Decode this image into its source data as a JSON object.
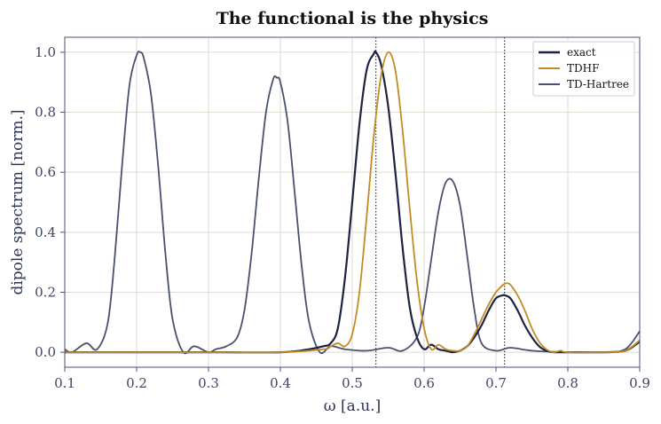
{
  "chart_data": {
    "type": "line",
    "title": "The functional is the physics",
    "xlabel": "ω  [a.u.]",
    "ylabel": "dipole spectrum  [norm.]",
    "xlim": [
      0.1,
      0.9
    ],
    "ylim": [
      -0.05,
      1.05
    ],
    "xticks": [
      0.1,
      0.2,
      0.3,
      0.4,
      0.5,
      0.6,
      0.7,
      0.8,
      0.9
    ],
    "xtick_labels": [
      "0.1",
      "0.2",
      "0.3",
      "0.4",
      "0.5",
      "0.6",
      "0.7",
      "0.8",
      "0.9"
    ],
    "yticks": [
      0.0,
      0.2,
      0.4,
      0.6,
      0.8,
      1.0
    ],
    "ytick_labels": [
      "0.0",
      "0.2",
      "0.4",
      "0.6",
      "0.8",
      "1.0"
    ],
    "grid": true,
    "legend_position": "top-right",
    "vlines": [
      0.533,
      0.712
    ],
    "series": [
      {
        "name": "exact",
        "color": "#1b2340",
        "x": [
          0.1,
          0.2,
          0.3,
          0.4,
          0.44,
          0.46,
          0.47,
          0.48,
          0.49,
          0.5,
          0.51,
          0.52,
          0.53,
          0.533,
          0.54,
          0.55,
          0.56,
          0.57,
          0.58,
          0.59,
          0.6,
          0.61,
          0.62,
          0.63,
          0.64,
          0.65,
          0.66,
          0.67,
          0.68,
          0.69,
          0.7,
          0.71,
          0.712,
          0.72,
          0.73,
          0.74,
          0.75,
          0.76,
          0.77,
          0.78,
          0.8,
          0.85,
          0.88,
          0.9
        ],
        "y": [
          0.0,
          0.0,
          0.0,
          0.0,
          0.01,
          0.02,
          0.03,
          0.08,
          0.25,
          0.5,
          0.76,
          0.94,
          0.995,
          1.0,
          0.96,
          0.82,
          0.6,
          0.35,
          0.15,
          0.05,
          0.01,
          0.025,
          0.01,
          0.005,
          0.0,
          0.005,
          0.02,
          0.05,
          0.09,
          0.14,
          0.18,
          0.19,
          0.19,
          0.18,
          0.14,
          0.09,
          0.05,
          0.02,
          0.005,
          0.0,
          0.0,
          0.0,
          0.005,
          0.035
        ]
      },
      {
        "name": "TDHF",
        "color": "#c48a25",
        "x": [
          0.1,
          0.2,
          0.3,
          0.4,
          0.46,
          0.47,
          0.48,
          0.49,
          0.5,
          0.51,
          0.52,
          0.53,
          0.54,
          0.55,
          0.56,
          0.57,
          0.58,
          0.59,
          0.6,
          0.61,
          0.62,
          0.63,
          0.64,
          0.65,
          0.66,
          0.67,
          0.68,
          0.69,
          0.7,
          0.71,
          0.715,
          0.72,
          0.73,
          0.74,
          0.75,
          0.76,
          0.77,
          0.78,
          0.79,
          0.8,
          0.85,
          0.88,
          0.9
        ],
        "y": [
          0.0,
          0.0,
          0.0,
          0.0,
          0.01,
          0.02,
          0.03,
          0.02,
          0.06,
          0.2,
          0.45,
          0.72,
          0.92,
          1.0,
          0.94,
          0.74,
          0.48,
          0.24,
          0.08,
          0.01,
          0.025,
          0.01,
          0.005,
          0.005,
          0.02,
          0.06,
          0.11,
          0.16,
          0.2,
          0.225,
          0.23,
          0.225,
          0.19,
          0.14,
          0.08,
          0.035,
          0.01,
          0.0,
          0.005,
          0.0,
          0.0,
          0.005,
          0.04
        ]
      },
      {
        "name": "TD-Hartree",
        "color": "#4a5170",
        "x": [
          0.1,
          0.11,
          0.13,
          0.145,
          0.16,
          0.17,
          0.18,
          0.19,
          0.2,
          0.205,
          0.21,
          0.22,
          0.23,
          0.24,
          0.25,
          0.265,
          0.28,
          0.3,
          0.31,
          0.325,
          0.34,
          0.35,
          0.36,
          0.37,
          0.38,
          0.39,
          0.395,
          0.4,
          0.41,
          0.42,
          0.43,
          0.44,
          0.455,
          0.47,
          0.49,
          0.52,
          0.55,
          0.57,
          0.59,
          0.6,
          0.61,
          0.62,
          0.63,
          0.64,
          0.65,
          0.66,
          0.67,
          0.68,
          0.7,
          0.72,
          0.75,
          0.8,
          0.85,
          0.88,
          0.9
        ],
        "y": [
          0.01,
          0.0,
          0.03,
          0.01,
          0.1,
          0.33,
          0.63,
          0.89,
          0.99,
          1.0,
          0.98,
          0.86,
          0.62,
          0.33,
          0.11,
          0.0,
          0.02,
          0.0,
          0.01,
          0.02,
          0.05,
          0.14,
          0.33,
          0.58,
          0.8,
          0.91,
          0.915,
          0.9,
          0.77,
          0.53,
          0.28,
          0.1,
          0.0,
          0.02,
          0.01,
          0.005,
          0.015,
          0.005,
          0.05,
          0.15,
          0.31,
          0.47,
          0.565,
          0.57,
          0.49,
          0.32,
          0.14,
          0.03,
          0.005,
          0.015,
          0.005,
          0.0,
          0.0,
          0.01,
          0.07
        ]
      }
    ]
  }
}
